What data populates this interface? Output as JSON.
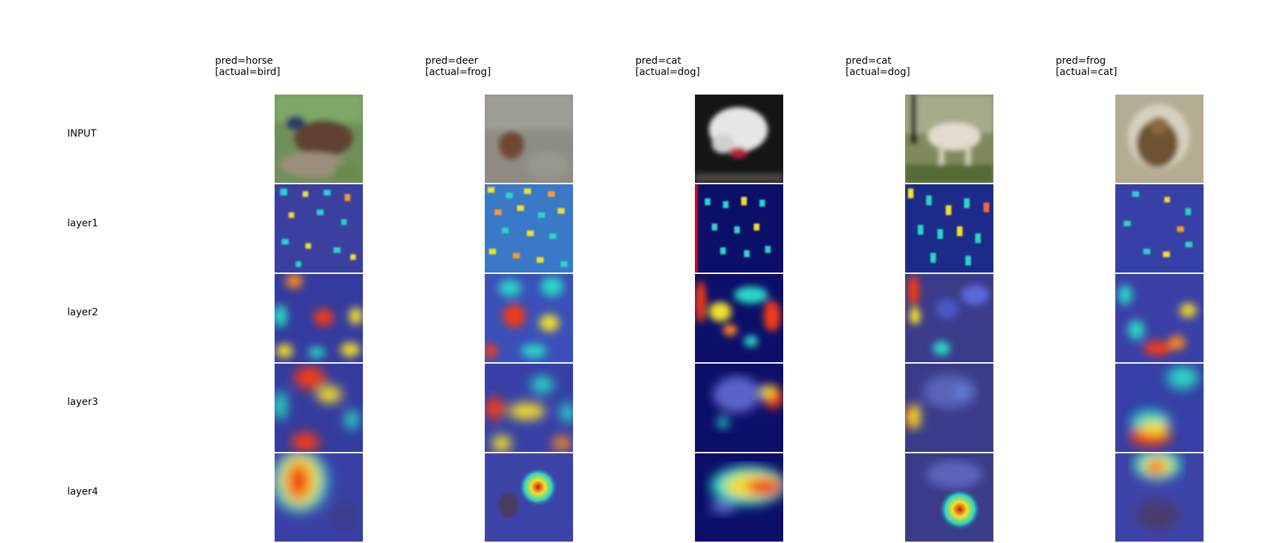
{
  "columns": [
    {
      "pred": "pred=horse",
      "actual": "[actual=bird]"
    },
    {
      "pred": "pred=deer",
      "actual": "[actual=frog]"
    },
    {
      "pred": "pred=cat",
      "actual": "[actual=dog]"
    },
    {
      "pred": "pred=cat",
      "actual": "[actual=dog]"
    },
    {
      "pred": "pred=frog",
      "actual": "[actual=cat]"
    }
  ],
  "rows": [
    "INPUT",
    "layer1",
    "layer2",
    "layer3",
    "layer4"
  ],
  "colors": {
    "heat_low": "#1a1a80",
    "heat_mid": "#2bd6c4",
    "heat_warm": "#f2e02a",
    "heat_hot": "#d01010"
  }
}
